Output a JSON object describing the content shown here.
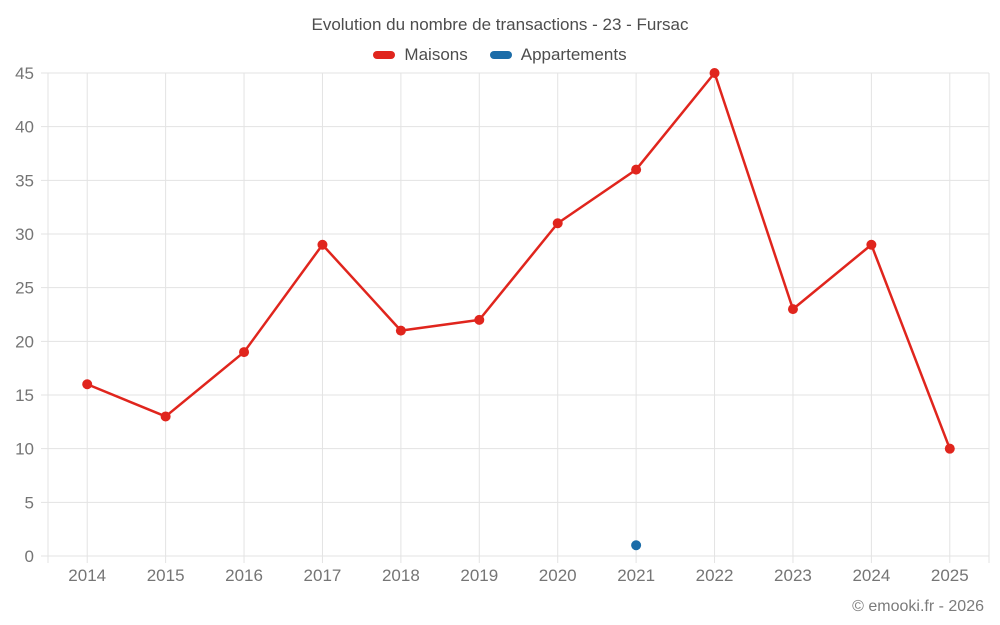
{
  "title": "Evolution du nombre de transactions - 23 - Fursac",
  "legend": [
    {
      "label": "Maisons",
      "color": "#e0251d"
    },
    {
      "label": "Appartements",
      "color": "#1b6ca8"
    }
  ],
  "footer": {
    "copyright": "© emooki.fr - 2026"
  },
  "chart_data": {
    "type": "line",
    "title": "Evolution du nombre de transactions - 23 - Fursac",
    "categories": [
      "2014",
      "2015",
      "2016",
      "2017",
      "2018",
      "2019",
      "2020",
      "2021",
      "2022",
      "2023",
      "2024",
      "2025"
    ],
    "series": [
      {
        "name": "Maisons",
        "color": "#e0251d",
        "values": [
          16,
          13,
          19,
          29,
          21,
          22,
          31,
          36,
          45,
          23,
          29,
          10
        ]
      },
      {
        "name": "Appartements",
        "color": "#1b6ca8",
        "values": [
          null,
          null,
          null,
          null,
          null,
          null,
          null,
          1,
          null,
          null,
          null,
          null
        ]
      }
    ],
    "xlabel": "",
    "ylabel": "",
    "ylim": [
      0,
      45
    ],
    "ytick_step": 5,
    "grid": true,
    "legend_position": "top",
    "grid_color": "#e3e3e3",
    "axis_text_color": "#757575"
  }
}
